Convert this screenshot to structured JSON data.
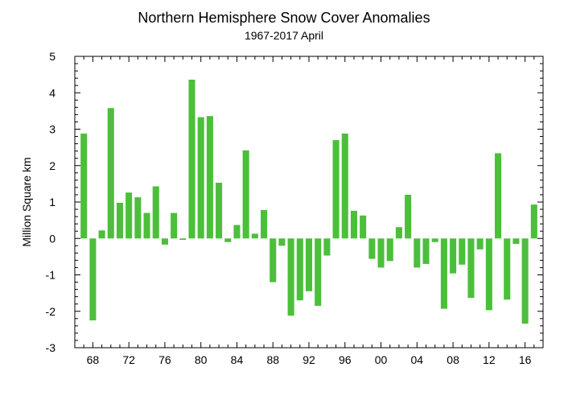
{
  "chart_data": {
    "type": "bar",
    "title": "Northern Hemisphere Snow Cover Anomalies",
    "subtitle": "1967-2017 April",
    "xlabel": "",
    "ylabel": "Million Square km",
    "ylim": [
      -3,
      5
    ],
    "yticks": [
      -3,
      -2,
      -1,
      0,
      1,
      2,
      3,
      4,
      5
    ],
    "xlim": [
      1966,
      2018
    ],
    "xticks": [
      {
        "year": 1968,
        "label": "68"
      },
      {
        "year": 1972,
        "label": "72"
      },
      {
        "year": 1976,
        "label": "76"
      },
      {
        "year": 1980,
        "label": "80"
      },
      {
        "year": 1984,
        "label": "84"
      },
      {
        "year": 1988,
        "label": "88"
      },
      {
        "year": 1992,
        "label": "92"
      },
      {
        "year": 1996,
        "label": "96"
      },
      {
        "year": 2000,
        "label": "00"
      },
      {
        "year": 2004,
        "label": "04"
      },
      {
        "year": 2008,
        "label": "08"
      },
      {
        "year": 2012,
        "label": "12"
      },
      {
        "year": 2016,
        "label": "16"
      }
    ],
    "bar_color": "#4cbf3a",
    "grid": false,
    "x": [
      1967,
      1968,
      1969,
      1970,
      1971,
      1972,
      1973,
      1974,
      1975,
      1976,
      1977,
      1978,
      1979,
      1980,
      1981,
      1982,
      1983,
      1984,
      1985,
      1986,
      1987,
      1988,
      1989,
      1990,
      1991,
      1992,
      1993,
      1994,
      1995,
      1996,
      1997,
      1998,
      1999,
      2000,
      2001,
      2002,
      2003,
      2004,
      2005,
      2006,
      2007,
      2008,
      2009,
      2010,
      2011,
      2012,
      2013,
      2014,
      2015,
      2016,
      2017
    ],
    "values": [
      2.88,
      -2.25,
      0.22,
      3.58,
      0.98,
      1.26,
      1.13,
      0.7,
      1.43,
      -0.17,
      0.7,
      -0.04,
      4.36,
      3.33,
      3.36,
      1.53,
      -0.1,
      0.37,
      2.42,
      0.13,
      0.78,
      -1.2,
      -0.2,
      -2.12,
      -1.7,
      -1.45,
      -1.85,
      -0.47,
      2.7,
      2.88,
      0.76,
      0.63,
      -0.56,
      -0.8,
      -0.62,
      0.31,
      1.2,
      -0.8,
      -0.7,
      -0.1,
      -1.93,
      -0.96,
      -0.72,
      -1.63,
      -0.3,
      -1.97,
      2.34,
      -1.68,
      -0.15,
      -2.34,
      0.93
    ]
  }
}
